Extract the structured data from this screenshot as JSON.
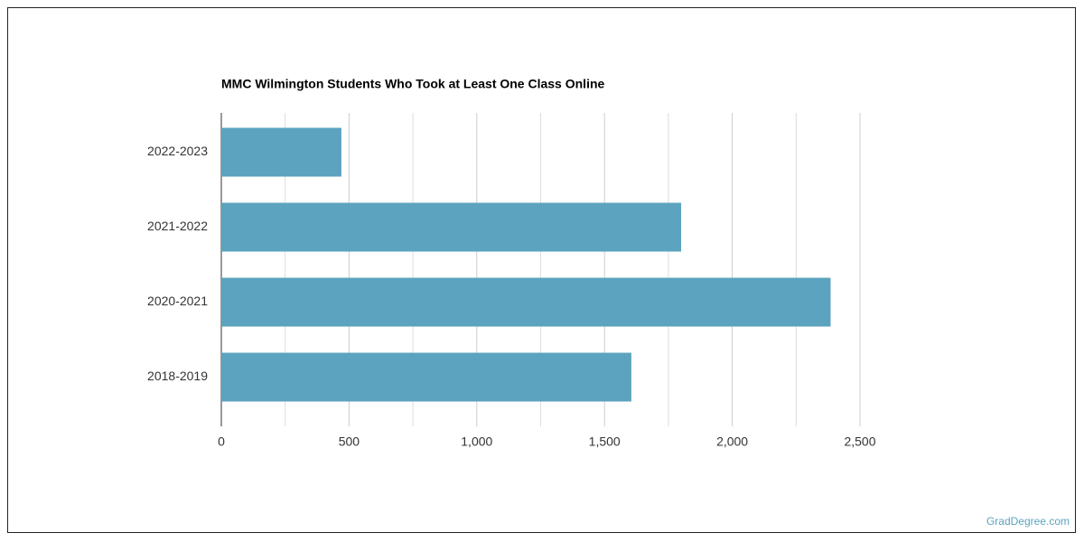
{
  "chart_data": {
    "type": "hbar",
    "title": "MMC Wilmington Students Who Took at Least One Class Online",
    "categories": [
      "2022-2023",
      "2021-2022",
      "2020-2021",
      "2018-2019"
    ],
    "values": [
      470,
      1800,
      2385,
      1605
    ],
    "color": "#5ba3be",
    "xlim": [
      0,
      2500
    ],
    "xticks": [
      0,
      500,
      {
        "value": 1000,
        "label": "1,000"
      },
      {
        "value": 1500,
        "label": "1,500"
      },
      {
        "value": 2000,
        "label": "2,000"
      },
      {
        "value": 2500,
        "label": "2,500"
      }
    ],
    "grid": true
  },
  "footer": "GradDegree.com"
}
